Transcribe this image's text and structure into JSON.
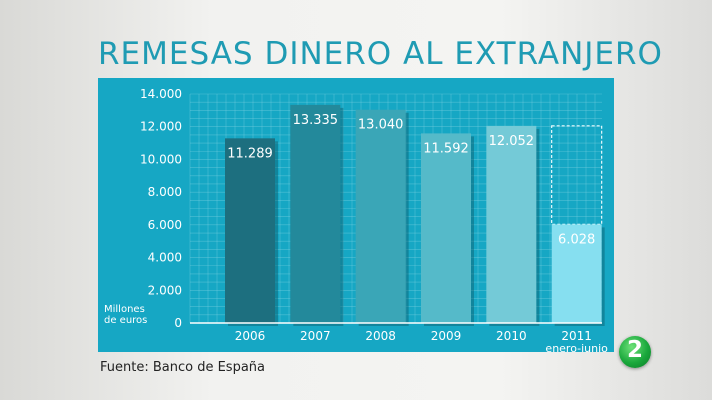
{
  "title": "REMESAS DINERO AL EXTRANJERO",
  "source": "Fuente: Banco de España",
  "logo": "2",
  "chart_data": {
    "type": "bar",
    "title": "REMESAS DINERO AL EXTRANJERO",
    "ylabel_lines": [
      "Millones",
      "de euros"
    ],
    "ylim": [
      0,
      14000
    ],
    "yticks": [
      0,
      2000,
      4000,
      6000,
      8000,
      10000,
      12000,
      14000
    ],
    "ytick_labels": [
      "0",
      "2.000",
      "4.000",
      "6.000",
      "8.000",
      "10.000",
      "12.000",
      "14.000"
    ],
    "grid": true,
    "categories": [
      "2006",
      "2007",
      "2008",
      "2009",
      "2010",
      "2011"
    ],
    "category_sublabels": [
      "",
      "",
      "",
      "",
      "",
      "enero-junio"
    ],
    "values": [
      11289,
      13335,
      13040,
      11592,
      12052,
      6028
    ],
    "value_labels": [
      "11.289",
      "13.335",
      "13.040",
      "11.592",
      "12.052",
      "6.028"
    ],
    "dashed_extension": {
      "category": "2011",
      "value": 12056
    },
    "colors": [
      "#1d6f7f",
      "#23899b",
      "#3aa6b7",
      "#55bac9",
      "#74cad7",
      "#86dff0"
    ]
  }
}
